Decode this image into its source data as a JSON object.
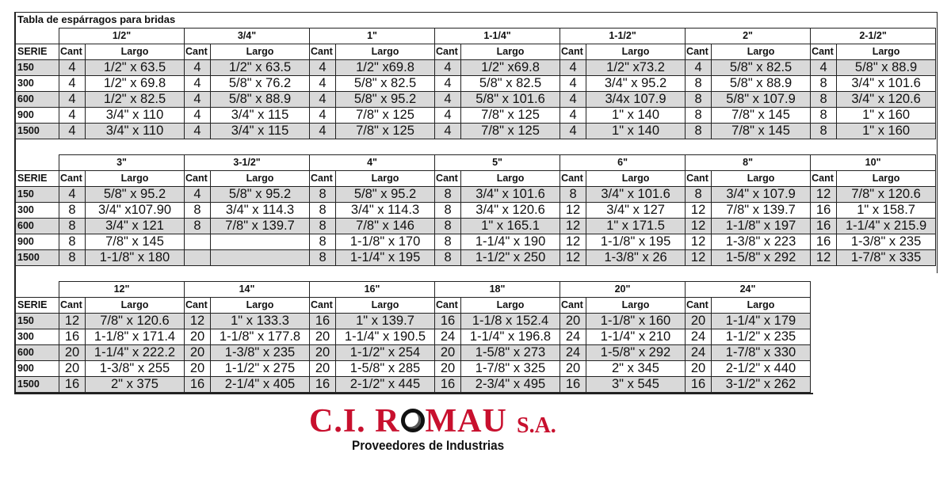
{
  "title": "Tabla de espárragos para bridas",
  "labels": {
    "serie": "SERIE",
    "cant": "Cant",
    "largo": "Largo"
  },
  "series": [
    "150",
    "300",
    "600",
    "900",
    "1500"
  ],
  "blocks": [
    {
      "sizes": [
        {
          "size": "1/2\"",
          "rows": [
            [
              "4",
              "1/2\" x 63.5"
            ],
            [
              "4",
              "1/2\" x 69.8"
            ],
            [
              "4",
              "1/2\" x 82.5"
            ],
            [
              "4",
              "3/4\" x 110"
            ],
            [
              "4",
              "3/4\" x 110"
            ]
          ]
        },
        {
          "size": "3/4\"",
          "rows": [
            [
              "4",
              "1/2\" x 63.5"
            ],
            [
              "4",
              "5/8\" x 76.2"
            ],
            [
              "4",
              "5/8\" x 88.9"
            ],
            [
              "4",
              "3/4\" x 115"
            ],
            [
              "4",
              "3/4\" x 115"
            ]
          ]
        },
        {
          "size": "1\"",
          "rows": [
            [
              "4",
              "1/2\" x69.8"
            ],
            [
              "4",
              "5/8\" x 82.5"
            ],
            [
              "4",
              "5/8\" x 95.2"
            ],
            [
              "4",
              "7/8\" x 125"
            ],
            [
              "4",
              "7/8\" x 125"
            ]
          ]
        },
        {
          "size": "1-1/4\"",
          "rows": [
            [
              "4",
              "1/2\" x69.8"
            ],
            [
              "4",
              "5/8\" x 82.5"
            ],
            [
              "4",
              "5/8\" x 101.6"
            ],
            [
              "4",
              "7/8\" x 125"
            ],
            [
              "4",
              "7/8\" x 125"
            ]
          ]
        },
        {
          "size": "1-1/2\"",
          "rows": [
            [
              "4",
              "1/2\" x73.2"
            ],
            [
              "4",
              "3/4\" x 95.2"
            ],
            [
              "4",
              "3/4x 107.9"
            ],
            [
              "4",
              "1\" x 140"
            ],
            [
              "4",
              "1\" x 140"
            ]
          ]
        },
        {
          "size": "2\"",
          "rows": [
            [
              "4",
              "5/8\" x 82.5"
            ],
            [
              "8",
              "5/8\" x 88.9"
            ],
            [
              "8",
              "5/8\" x 107.9"
            ],
            [
              "8",
              "7/8\" x 145"
            ],
            [
              "8",
              "7/8\" x 145"
            ]
          ]
        },
        {
          "size": "2-1/2\"",
          "rows": [
            [
              "4",
              "5/8\" x 88.9"
            ],
            [
              "8",
              "3/4\" x 101.6"
            ],
            [
              "8",
              "3/4\" x 120.6"
            ],
            [
              "8",
              "1\" x 160"
            ],
            [
              "8",
              "1\" x 160"
            ]
          ]
        }
      ]
    },
    {
      "sizes": [
        {
          "size": "3\"",
          "rows": [
            [
              "4",
              "5/8\" x 95.2"
            ],
            [
              "8",
              "3/4\" x107.90"
            ],
            [
              "8",
              "3/4\" x 121"
            ],
            [
              "8",
              "7/8\" x 145"
            ],
            [
              "8",
              "1-1/8\" x 180"
            ]
          ]
        },
        {
          "size": "3-1/2\"",
          "rows": [
            [
              "4",
              "5/8\" x 95.2"
            ],
            [
              "8",
              "3/4\" x 114.3"
            ],
            [
              "8",
              "7/8\" x 139.7"
            ],
            [
              "",
              ""
            ],
            [
              "",
              ""
            ]
          ]
        },
        {
          "size": "4\"",
          "rows": [
            [
              "8",
              "5/8\" x 95.2"
            ],
            [
              "8",
              "3/4\" x 114.3"
            ],
            [
              "8",
              "7/8\" x 146"
            ],
            [
              "8",
              "1-1/8\" x 170"
            ],
            [
              "8",
              "1-1/4\" x 195"
            ]
          ]
        },
        {
          "size": "5\"",
          "rows": [
            [
              "8",
              "3/4\" x 101.6"
            ],
            [
              "8",
              "3/4\" x 120.6"
            ],
            [
              "8",
              "1\" x 165.1"
            ],
            [
              "8",
              "1-1/4\" x 190"
            ],
            [
              "8",
              "1-1/2\" x 250"
            ]
          ]
        },
        {
          "size": "6\"",
          "rows": [
            [
              "8",
              "3/4\" x 101.6"
            ],
            [
              "12",
              "3/4\" x 127"
            ],
            [
              "12",
              "1\" x 171.5"
            ],
            [
              "12",
              "1-1/8\" x 195"
            ],
            [
              "12",
              "1-3/8\" x 26"
            ]
          ]
        },
        {
          "size": "8\"",
          "rows": [
            [
              "8",
              "3/4\" x 107.9"
            ],
            [
              "12",
              "7/8\" x 139.7"
            ],
            [
              "12",
              "1-1/8\" x 197"
            ],
            [
              "12",
              "1-3/8\" x 223"
            ],
            [
              "12",
              "1-5/8\" x 292"
            ]
          ]
        },
        {
          "size": "10\"",
          "rows": [
            [
              "12",
              "7/8\" x 120.6"
            ],
            [
              "16",
              "1\" x 158.7"
            ],
            [
              "16",
              "1-1/4\" x 215.9"
            ],
            [
              "16",
              "1-3/8\" x 235"
            ],
            [
              "12",
              "1-7/8\" x 335"
            ]
          ]
        }
      ]
    },
    {
      "sizes": [
        {
          "size": "12\"",
          "rows": [
            [
              "12",
              "7/8\" x 120.6"
            ],
            [
              "16",
              "1-1/8\" x 171.4"
            ],
            [
              "20",
              "1-1/4\" x 222.2"
            ],
            [
              "20",
              "1-3/8\" x 255"
            ],
            [
              "16",
              "2\" x 375"
            ]
          ]
        },
        {
          "size": "14\"",
          "rows": [
            [
              "12",
              "1\" x 133.3"
            ],
            [
              "20",
              "1-1/8\" x 177.8"
            ],
            [
              "20",
              "1-3/8\" x 235"
            ],
            [
              "20",
              "1-1/2\" x 275"
            ],
            [
              "16",
              "2-1/4\" x 405"
            ]
          ]
        },
        {
          "size": "16\"",
          "rows": [
            [
              "16",
              "1\" x 139.7"
            ],
            [
              "20",
              "1-1/4\" x 190.5"
            ],
            [
              "20",
              "1-1/2\" x 254"
            ],
            [
              "20",
              "1-5/8\" x 285"
            ],
            [
              "16",
              "2-1/2\" x 445"
            ]
          ]
        },
        {
          "size": "18\"",
          "rows": [
            [
              "16",
              "1-1/8 x 152.4"
            ],
            [
              "24",
              "1-1/4\" x 196.8"
            ],
            [
              "20",
              "1-5/8\" x 273"
            ],
            [
              "20",
              "1-7/8\" x 325"
            ],
            [
              "16",
              "2-3/4\" x 495"
            ]
          ]
        },
        {
          "size": "20\"",
          "rows": [
            [
              "20",
              "1-1/8\" x 160"
            ],
            [
              "24",
              "1-1/4\" x 210"
            ],
            [
              "24",
              "1-5/8\" x 292"
            ],
            [
              "20",
              "2\" x 345"
            ],
            [
              "16",
              "3\" x 545"
            ]
          ]
        },
        {
          "size": "24\"",
          "rows": [
            [
              "20",
              "1-1/4\" x 179"
            ],
            [
              "24",
              "1-1/2\" x 235"
            ],
            [
              "24",
              "1-7/8\" x 330"
            ],
            [
              "20",
              "2-1/2\" x 440"
            ],
            [
              "16",
              "3-1/2\" x 262"
            ]
          ]
        }
      ]
    }
  ],
  "logo": {
    "name_a": "C.I. R",
    "name_b": "MAU",
    "suffix": "S.A.",
    "tagline": "Proveedores de Industrias",
    "brand_color": "#c8102e"
  }
}
